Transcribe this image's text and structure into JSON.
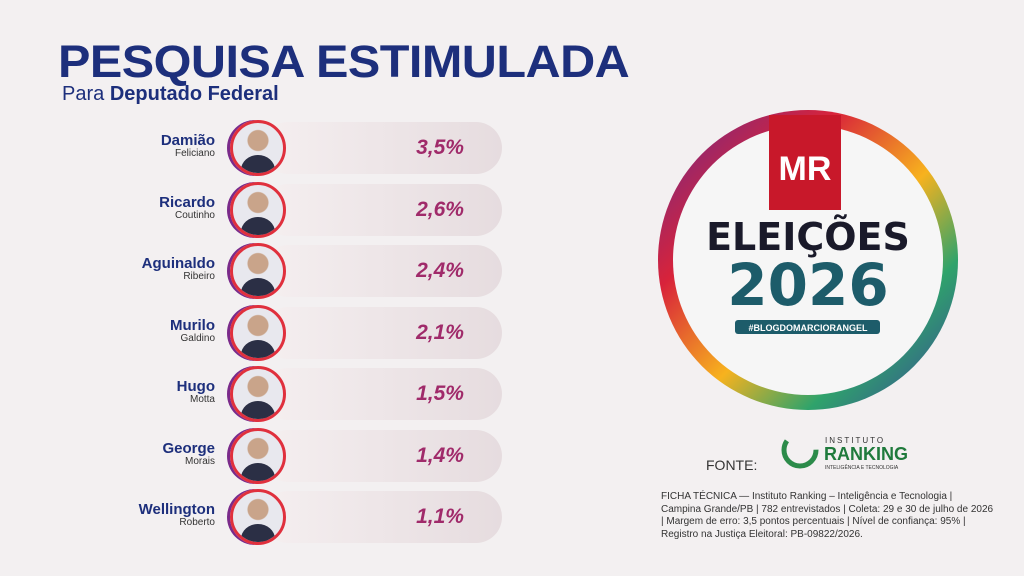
{
  "header": {
    "title": "PESQUISA ESTIMULADA",
    "subtitle_prefix": "Para",
    "subtitle": "Deputado Federal"
  },
  "candidates": [
    {
      "first": "Damião",
      "last": "Feliciano",
      "value": "3,5%"
    },
    {
      "first": "Ricardo",
      "last": "Coutinho",
      "value": "2,6%"
    },
    {
      "first": "Aguinaldo",
      "last": "Ribeiro",
      "value": "2,4%"
    },
    {
      "first": "Murilo",
      "last": "Galdino",
      "value": "2,1%"
    },
    {
      "first": "Hugo",
      "last": "Motta",
      "value": "1,5%"
    },
    {
      "first": "George",
      "last": "Morais",
      "value": "1,4%"
    },
    {
      "first": "Wellington",
      "last": "Roberto",
      "value": "1,1%"
    }
  ],
  "logo": {
    "brand": "MR",
    "line1": "ELEIÇÕES",
    "line2": "2026",
    "hashtag": "#BLOGDOMARCIORANGEL"
  },
  "source": {
    "label": "FONTE:",
    "institute_top": "INSTITUTO",
    "institute_name": "RANKING",
    "institute_sub": "INTELIGÊNCIA E TECNOLOGIA"
  },
  "ficha": [
    "FICHA TÉCNICA — Instituto Ranking – Inteligência e Tecnologia |",
    "Campina Grande/PB | 782 entrevistados | Coleta: 29 e 30 de julho de 2026",
    "| Margem de erro: 3,5 pontos percentuais | Nível de confiança: 95% |",
    "Registro na Justiça Eleitoral: PB-09822/2026."
  ]
}
